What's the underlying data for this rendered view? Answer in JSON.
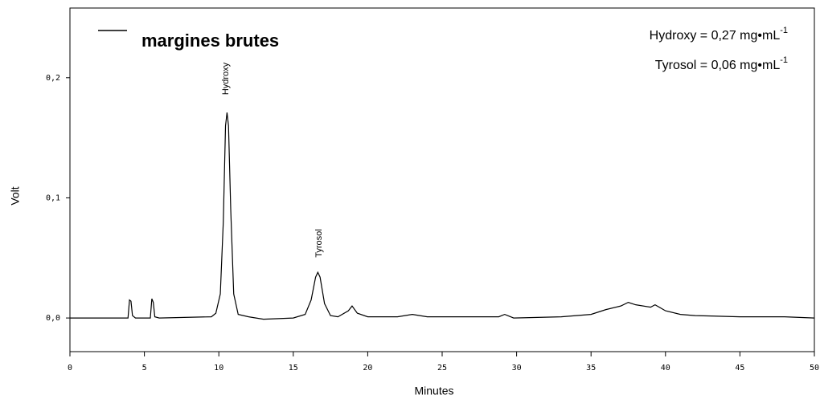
{
  "chart_data": {
    "type": "line",
    "x_label": "Minutes",
    "y_label": "Volt",
    "x": [
      0,
      3.9,
      4.0,
      4.1,
      4.2,
      4.4,
      5.4,
      5.5,
      5.6,
      5.7,
      6,
      9.5,
      9.8,
      10.1,
      10.3,
      10.45,
      10.55,
      10.65,
      10.8,
      11.0,
      11.3,
      12,
      13,
      15,
      15.8,
      16.2,
      16.5,
      16.65,
      16.8,
      17.1,
      17.5,
      18,
      18.7,
      18.95,
      19.3,
      20,
      22,
      23,
      24,
      28.8,
      29.2,
      29.8,
      33,
      35,
      36,
      37,
      37.5,
      38,
      39,
      39.3,
      40,
      41,
      42,
      45,
      48,
      50
    ],
    "series": [
      {
        "name": "margines brutes",
        "color": "#000000",
        "values": [
          0,
          0,
          0.015,
          0.014,
          0.002,
          0,
          0,
          0.016,
          0.013,
          0.001,
          0,
          0.001,
          0.004,
          0.02,
          0.08,
          0.16,
          0.171,
          0.16,
          0.09,
          0.02,
          0.003,
          0.001,
          -0.001,
          0,
          0.003,
          0.015,
          0.034,
          0.038,
          0.034,
          0.012,
          0.002,
          0.001,
          0.006,
          0.01,
          0.004,
          0.001,
          0.001,
          0.003,
          0.001,
          0.001,
          0.003,
          0,
          0.001,
          0.003,
          0.007,
          0.01,
          0.013,
          0.011,
          0.009,
          0.011,
          0.006,
          0.003,
          0.002,
          0.001,
          0.001,
          0
        ]
      }
    ],
    "xlim": [
      0,
      50
    ],
    "xticks": [
      0,
      5,
      10,
      15,
      20,
      25,
      30,
      35,
      40,
      45,
      50
    ],
    "ylim": [
      -0.028,
      0.258
    ],
    "yticks": [
      {
        "value": 0,
        "label": "0,0"
      },
      {
        "value": 0.1,
        "label": "0,1"
      },
      {
        "value": 0.2,
        "label": "0,2"
      }
    ],
    "peak_labels": [
      "Hydroxy",
      "Tyrosol"
    ],
    "concentrations": [
      {
        "text": "Hydroxy = 0,27 mg•mL",
        "sup": "-1"
      },
      {
        "text": "Tyrosol = 0,06 mg•mL",
        "sup": "-1"
      }
    ]
  }
}
